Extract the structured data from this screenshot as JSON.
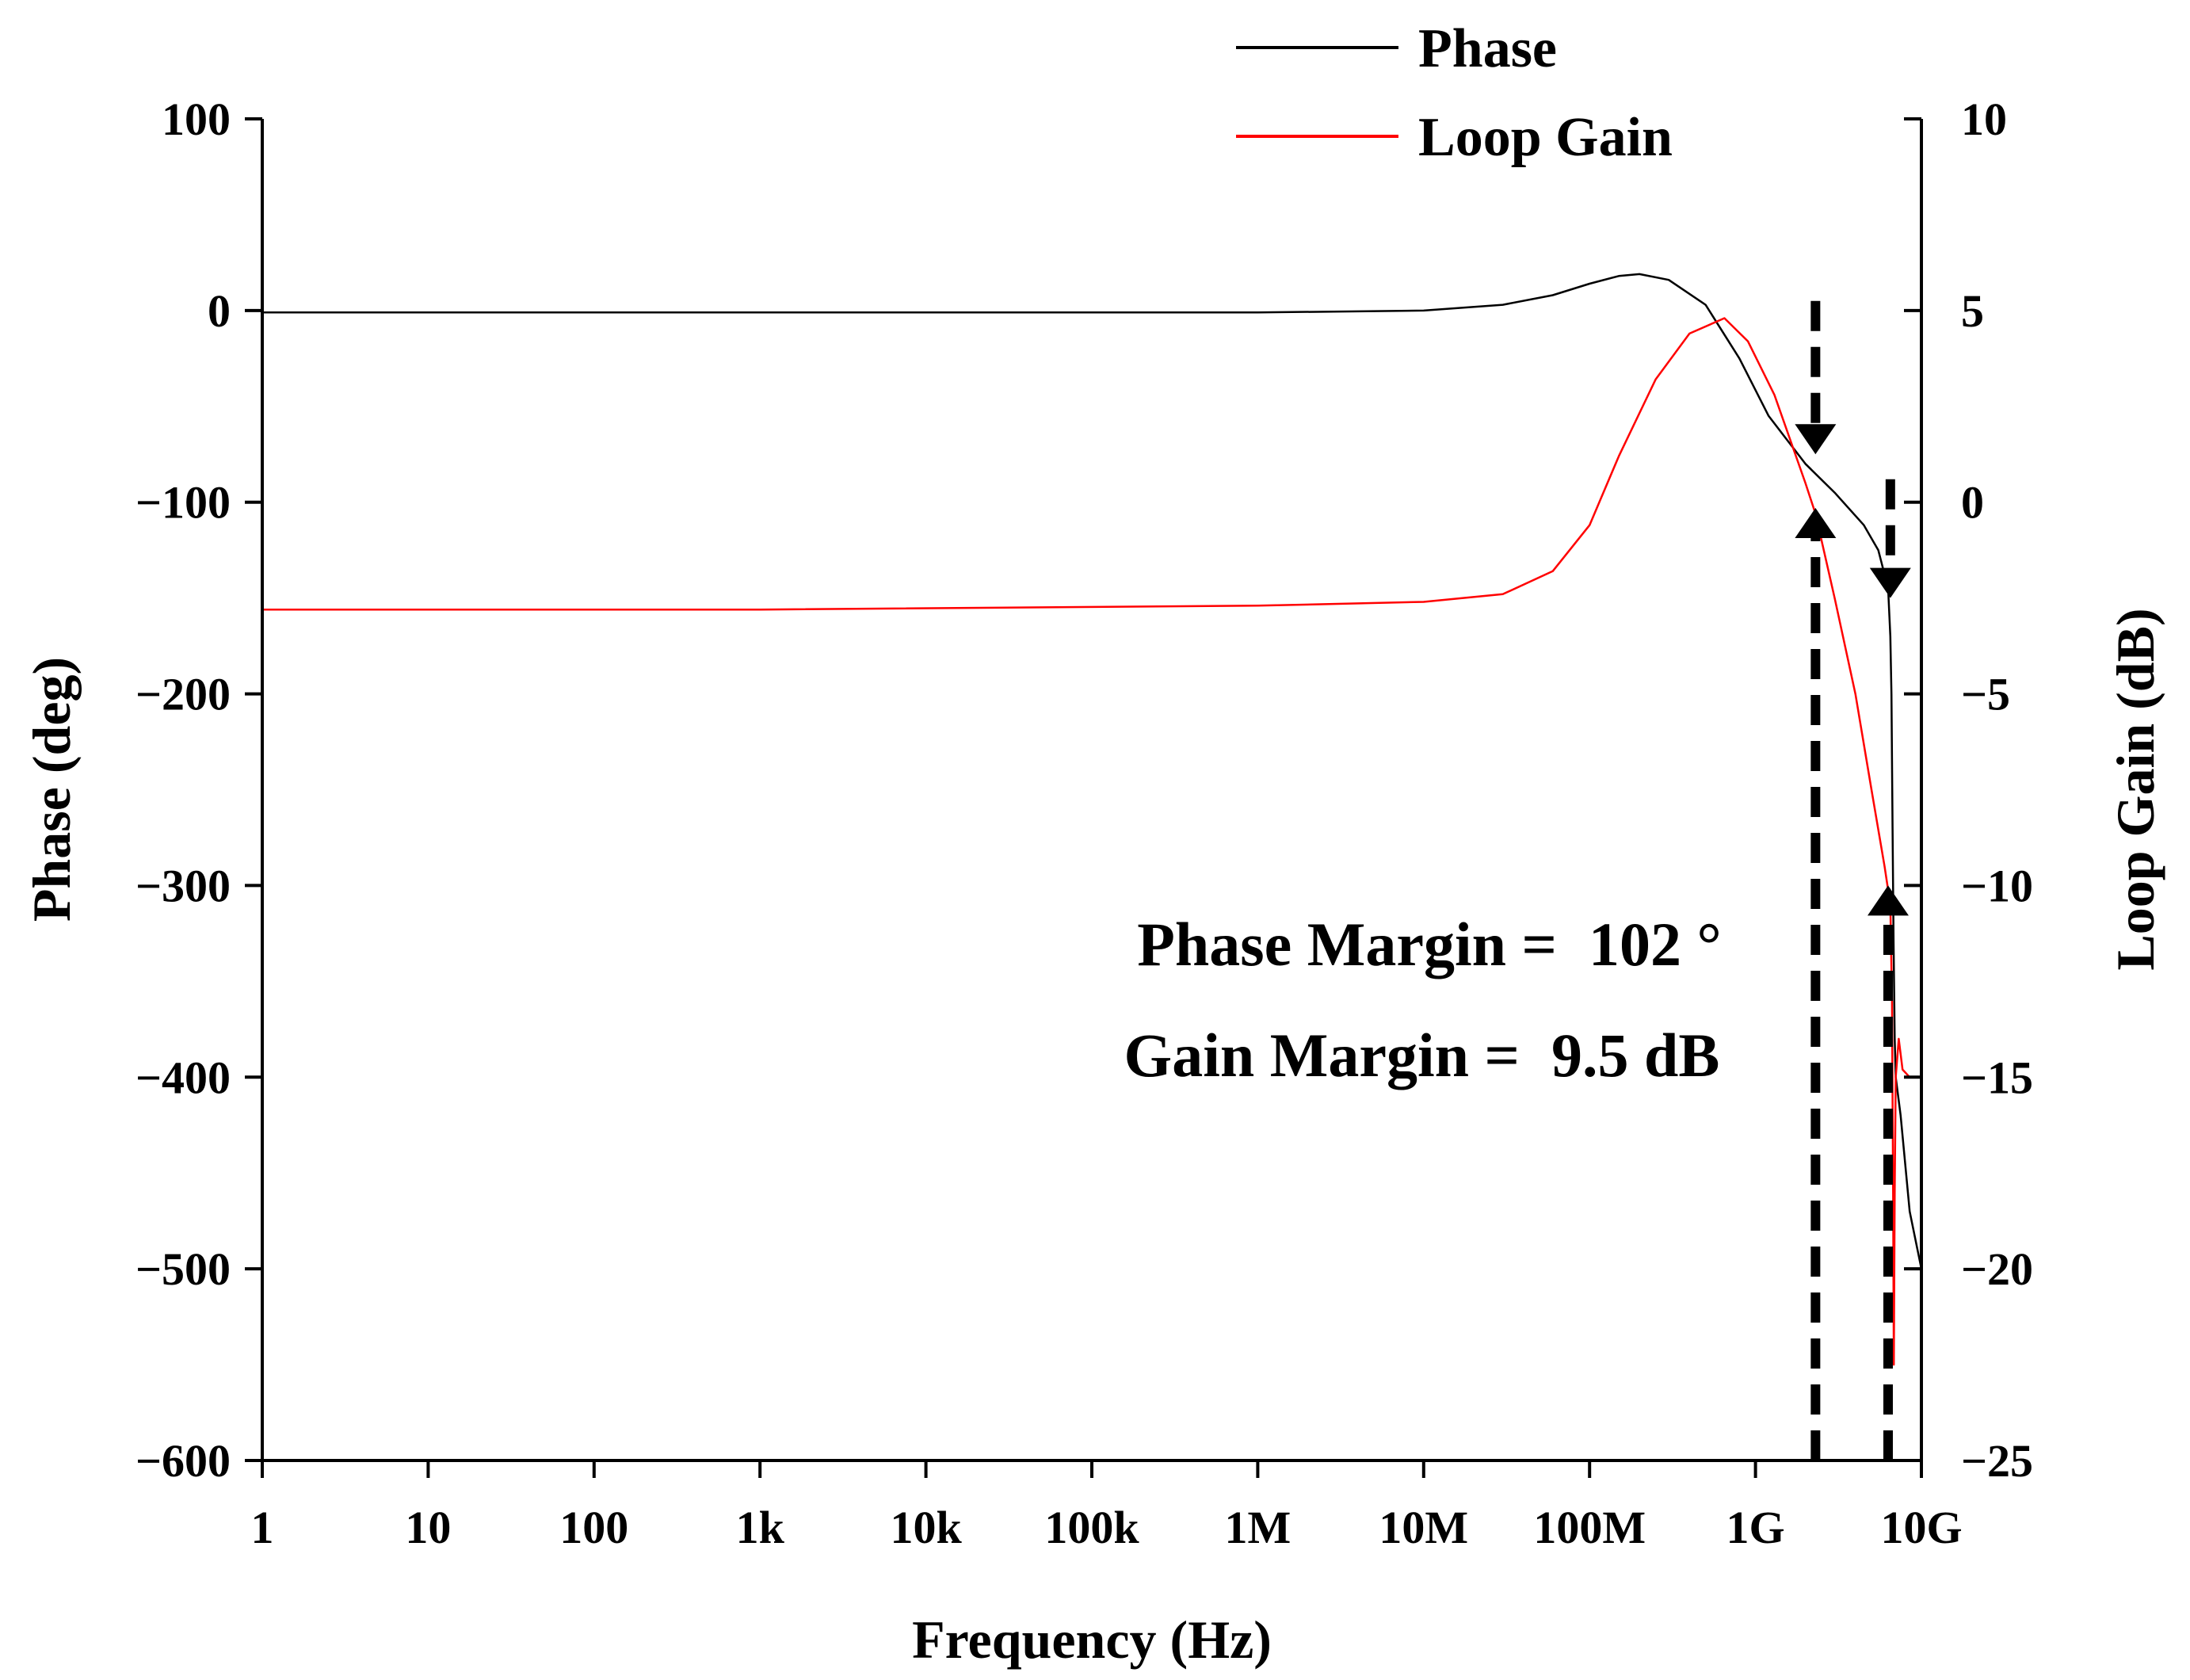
{
  "chart_data": {
    "type": "line",
    "xlabel": "Frequency (Hz)",
    "ylabel_left": "Phase (deg)",
    "ylabel_right": "Loop Gain (dB)",
    "x_scale": "log",
    "xlim": [
      1,
      10000000000
    ],
    "x_ticks": [
      {
        "value": 1,
        "label": "1"
      },
      {
        "value": 10,
        "label": "10"
      },
      {
        "value": 100,
        "label": "100"
      },
      {
        "value": 1000,
        "label": "1k"
      },
      {
        "value": 10000,
        "label": "10k"
      },
      {
        "value": 100000,
        "label": "100k"
      },
      {
        "value": 1000000,
        "label": "1M"
      },
      {
        "value": 10000000,
        "label": "10M"
      },
      {
        "value": 100000000,
        "label": "100M"
      },
      {
        "value": 1000000000,
        "label": "1G"
      },
      {
        "value": 10000000000,
        "label": "10G"
      }
    ],
    "ylim_left": [
      -600,
      100
    ],
    "ylim_right": [
      -25,
      10
    ],
    "y_ticks_left": [
      {
        "value": 100,
        "label": "100"
      },
      {
        "value": 0,
        "label": "0"
      },
      {
        "value": -100,
        "label": "−100"
      },
      {
        "value": -200,
        "label": "−200"
      },
      {
        "value": -300,
        "label": "−300"
      },
      {
        "value": -400,
        "label": "−400"
      },
      {
        "value": -500,
        "label": "−500"
      },
      {
        "value": -600,
        "label": "−600"
      }
    ],
    "y_ticks_right": [
      {
        "value": 10,
        "label": "10"
      },
      {
        "value": 5,
        "label": "5"
      },
      {
        "value": 0,
        "label": "0"
      },
      {
        "value": -5,
        "label": "−5"
      },
      {
        "value": -10,
        "label": "−10"
      },
      {
        "value": -15,
        "label": "−15"
      },
      {
        "value": -20,
        "label": "−20"
      },
      {
        "value": -25,
        "label": "−25"
      }
    ],
    "legend": {
      "placement": "top-right"
    },
    "series": [
      {
        "name": "Phase",
        "axis": "left",
        "color": "#000000",
        "points": [
          [
            1,
            -1
          ],
          [
            1000,
            -1
          ],
          [
            1000000,
            -1
          ],
          [
            10000000,
            0
          ],
          [
            30000000,
            3
          ],
          [
            60000000,
            8
          ],
          [
            100000000,
            14
          ],
          [
            150000000,
            18
          ],
          [
            200000000,
            19
          ],
          [
            300000000,
            16
          ],
          [
            500000000,
            3
          ],
          [
            800000000,
            -25
          ],
          [
            1200000000,
            -55
          ],
          [
            2000000000,
            -80
          ],
          [
            3000000000,
            -95
          ],
          [
            4500000000,
            -112
          ],
          [
            5500000000,
            -125
          ],
          [
            6300000000,
            -145
          ],
          [
            6500000000,
            -170
          ],
          [
            6600000000,
            -200
          ],
          [
            6700000000,
            -270
          ],
          [
            6800000000,
            -330
          ],
          [
            6900000000,
            -380
          ],
          [
            7000000000,
            -400
          ],
          [
            7500000000,
            -420
          ],
          [
            8500000000,
            -470
          ],
          [
            10000000000,
            -500
          ]
        ]
      },
      {
        "name": "Loop Gain",
        "axis": "right",
        "color": "#ff0000",
        "points": [
          [
            1,
            -2.8
          ],
          [
            1000,
            -2.8
          ],
          [
            1000000,
            -2.7
          ],
          [
            10000000,
            -2.6
          ],
          [
            30000000,
            -2.4
          ],
          [
            60000000,
            -1.8
          ],
          [
            100000000,
            -0.6
          ],
          [
            150000000,
            1.2
          ],
          [
            250000000,
            3.2
          ],
          [
            400000000,
            4.4
          ],
          [
            650000000,
            4.8
          ],
          [
            900000000,
            4.2
          ],
          [
            1300000000,
            2.8
          ],
          [
            2000000000,
            0.5
          ],
          [
            2300000000,
            -0.3
          ],
          [
            3000000000,
            -2.5
          ],
          [
            4000000000,
            -5
          ],
          [
            5000000000,
            -7.5
          ],
          [
            6000000000,
            -9.5
          ],
          [
            6500000000,
            -10.5
          ],
          [
            6650000000,
            -13
          ],
          [
            6750000000,
            -18
          ],
          [
            6820000000,
            -22.5
          ],
          [
            6900000000,
            -18
          ],
          [
            7000000000,
            -15
          ],
          [
            7300000000,
            -14
          ],
          [
            7700000000,
            -14.8
          ],
          [
            8500000000,
            -15
          ],
          [
            10000000000,
            -15
          ]
        ]
      }
    ],
    "markers": [
      {
        "type": "down-arrow",
        "x": 2300000000,
        "y_left_from": 5,
        "y_left_to": -75
      },
      {
        "type": "down-arrow",
        "x": 6500000000,
        "y_left_from": -88,
        "y_left_to": -150
      },
      {
        "type": "up-arrow",
        "x": 2300000000,
        "y_left_from": -600,
        "y_left_to": -103
      },
      {
        "type": "up-arrow",
        "x": 6300000000,
        "y_left_from": -600,
        "y_left_to": -300
      }
    ],
    "annotations": [
      {
        "label": "Phase Margin =",
        "value": "102 °"
      },
      {
        "label": "Gain Margin =",
        "value": "9.5 dB"
      }
    ]
  }
}
